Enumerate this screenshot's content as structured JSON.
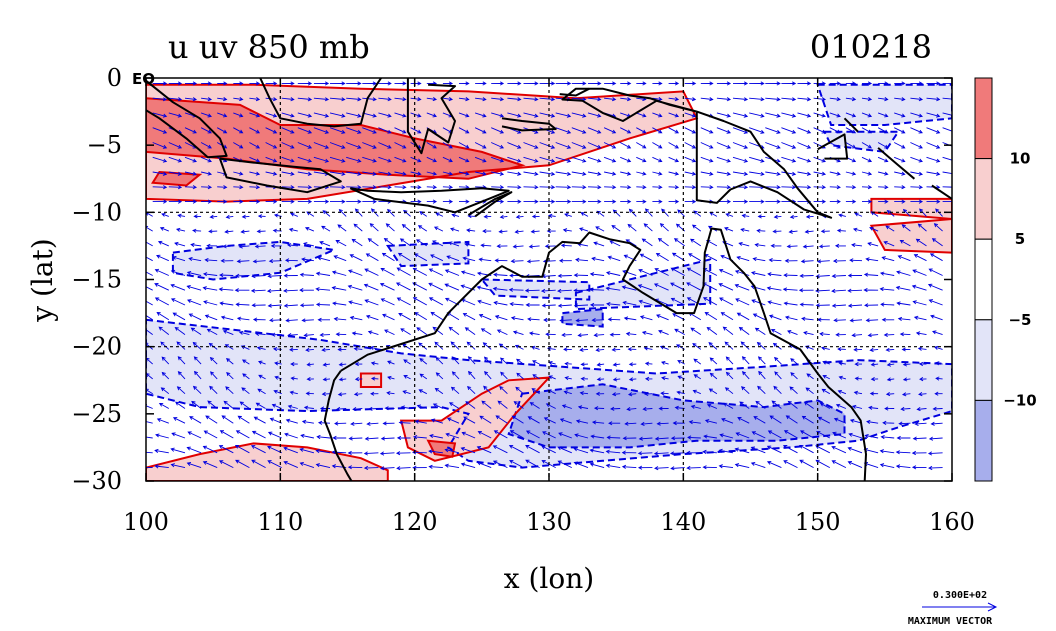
{
  "chart_data": {
    "type": "heatmap",
    "title_left": "u uv 850 mb",
    "title_right": "010218",
    "xlabel": "x (lon)",
    "ylabel": "y (lat)",
    "xlim": [
      100,
      160
    ],
    "ylim": [
      -30,
      0
    ],
    "x_ticks": [
      100,
      110,
      120,
      130,
      140,
      150,
      160
    ],
    "x_tick_labels": [
      "100",
      "110",
      "120",
      "130",
      "140",
      "150",
      "160"
    ],
    "y_ticks": [
      0,
      -5,
      -10,
      -15,
      -20,
      -25,
      -30
    ],
    "y_tick_labels": [
      "0",
      "−5",
      "−10",
      "−15",
      "−20",
      "−25",
      "−30"
    ],
    "eq_label": "EQ",
    "grid_lon": [
      110,
      120,
      130,
      140,
      150
    ],
    "grid_lat": [
      -10,
      -20
    ],
    "colorbar": {
      "labels": [
        "10",
        "5",
        "−5",
        "−10"
      ],
      "levels": [
        {
          "range": "> 10",
          "color": "#f07a7a"
        },
        {
          "range": "5 to 10",
          "color": "#f8cfcf"
        },
        {
          "range": "-5 to 5",
          "color": "#ffffff"
        },
        {
          "range": "-10 to -5",
          "color": "#e2e4f8"
        },
        {
          "range": "< -10",
          "color": "#a7aeec"
        }
      ]
    },
    "vector_legend": {
      "value": "0.300E+02",
      "label": "MAXIMUM VECTOR"
    },
    "colors": {
      "positive": "#e00000",
      "negative": "#0000e0",
      "coast": "#000000"
    },
    "regions_positive_5": [
      [
        [
          100,
          -0.5
        ],
        [
          108,
          -0.5
        ],
        [
          116,
          -0.8
        ],
        [
          124,
          -1.0
        ],
        [
          132,
          -1.5
        ],
        [
          140,
          -1.0
        ],
        [
          141,
          -3.0
        ],
        [
          136,
          -4.5
        ],
        [
          130,
          -6.5
        ],
        [
          124,
          -7.0
        ],
        [
          118,
          -8.0
        ],
        [
          112,
          -9.0
        ],
        [
          106,
          -9.2
        ],
        [
          100,
          -9.0
        ]
      ],
      [
        [
          154,
          -9.0
        ],
        [
          160,
          -9.0
        ],
        [
          160,
          -10.5
        ],
        [
          154,
          -10.0
        ]
      ],
      [
        [
          154,
          -11.0
        ],
        [
          160,
          -10.5
        ],
        [
          160,
          -13.0
        ],
        [
          155,
          -12.8
        ]
      ],
      [
        [
          116,
          -22.0
        ],
        [
          117.5,
          -22.0
        ],
        [
          117.5,
          -23.0
        ],
        [
          116,
          -23.0
        ]
      ],
      [
        [
          119,
          -25.5
        ],
        [
          122,
          -25.5
        ],
        [
          125,
          -23.5
        ],
        [
          127,
          -22.5
        ],
        [
          130,
          -22.3
        ],
        [
          127.5,
          -25.0
        ],
        [
          125.5,
          -27.5
        ],
        [
          121.5,
          -28.5
        ],
        [
          119.5,
          -27.5
        ]
      ],
      [
        [
          100,
          -29.0
        ],
        [
          104,
          -28.0
        ],
        [
          108,
          -27.2
        ],
        [
          112,
          -27.5
        ],
        [
          116,
          -28.3
        ],
        [
          118,
          -29.2
        ],
        [
          118,
          -30
        ],
        [
          100,
          -30
        ]
      ]
    ],
    "regions_positive_10": [
      [
        [
          100,
          -1.5
        ],
        [
          107,
          -2.0
        ],
        [
          110,
          -3.5
        ],
        [
          116,
          -3.5
        ],
        [
          120,
          -4.5
        ],
        [
          125,
          -5.5
        ],
        [
          128,
          -6.5
        ],
        [
          124,
          -7.5
        ],
        [
          118,
          -7.2
        ],
        [
          112,
          -6.8
        ],
        [
          106,
          -6.0
        ],
        [
          100,
          -5.5
        ]
      ],
      [
        [
          101,
          -7.0
        ],
        [
          104,
          -7.2
        ],
        [
          103,
          -8.0
        ],
        [
          100.5,
          -7.8
        ]
      ],
      [
        [
          121,
          -27.0
        ],
        [
          123,
          -27.2
        ],
        [
          122.8,
          -28.2
        ],
        [
          121.5,
          -28.0
        ]
      ]
    ],
    "regions_negative_5": [
      [
        [
          100,
          -18.0
        ],
        [
          107,
          -18.8
        ],
        [
          113,
          -19.5
        ],
        [
          119,
          -20.5
        ],
        [
          124,
          -21.0
        ],
        [
          131,
          -21.5
        ],
        [
          138,
          -22.0
        ],
        [
          146,
          -21.5
        ],
        [
          153,
          -21.0
        ],
        [
          160,
          -21.3
        ],
        [
          160,
          -24.8
        ],
        [
          156,
          -26.0
        ],
        [
          153,
          -27.0
        ],
        [
          148,
          -27.5
        ],
        [
          140,
          -28.0
        ],
        [
          134,
          -28.5
        ],
        [
          128,
          -29.0
        ],
        [
          124,
          -28.5
        ],
        [
          122.5,
          -27.5
        ],
        [
          124,
          -25.0
        ],
        [
          122,
          -24.5
        ],
        [
          112,
          -24.8
        ],
        [
          104,
          -24.5
        ],
        [
          100,
          -23.5
        ]
      ],
      [
        [
          102,
          -13.0
        ],
        [
          106,
          -12.5
        ],
        [
          110,
          -12.2
        ],
        [
          114,
          -12.8
        ],
        [
          110,
          -14.5
        ],
        [
          105,
          -15.0
        ],
        [
          102,
          -14.5
        ]
      ],
      [
        [
          118,
          -12.5
        ],
        [
          124,
          -12.2
        ],
        [
          124,
          -13.8
        ],
        [
          119,
          -14.0
        ]
      ],
      [
        [
          125,
          -15.0
        ],
        [
          133,
          -15.2
        ],
        [
          133,
          -16.5
        ],
        [
          126,
          -16.2
        ]
      ],
      [
        [
          132,
          -16.0
        ],
        [
          138,
          -14.5
        ],
        [
          142,
          -13.5
        ],
        [
          142,
          -16.8
        ],
        [
          137,
          -17.0
        ],
        [
          132,
          -17.2
        ]
      ],
      [
        [
          150,
          -0.5
        ],
        [
          160,
          -0.5
        ],
        [
          160,
          -3.0
        ],
        [
          155,
          -3.5
        ],
        [
          151,
          -3.5
        ]
      ],
      [
        [
          150.5,
          -4.0
        ],
        [
          156,
          -4.0
        ],
        [
          155,
          -5.5
        ],
        [
          151,
          -5.0
        ]
      ]
    ],
    "regions_negative_10": [
      [
        [
          128,
          -23.5
        ],
        [
          134,
          -22.8
        ],
        [
          140,
          -24.0
        ],
        [
          146,
          -24.5
        ],
        [
          150,
          -24.0
        ],
        [
          152,
          -25.0
        ],
        [
          152,
          -26.5
        ],
        [
          147,
          -27.0
        ],
        [
          141,
          -27.0
        ],
        [
          136,
          -27.5
        ],
        [
          130,
          -27.5
        ],
        [
          127,
          -26.5
        ]
      ],
      [
        [
          131,
          -17.5
        ],
        [
          134,
          -17.2
        ],
        [
          134,
          -18.5
        ],
        [
          131,
          -18.3
        ]
      ]
    ],
    "coastlines": [
      [
        [
          114.5,
          -21.8
        ],
        [
          114.0,
          -22.5
        ],
        [
          113.6,
          -24.0
        ],
        [
          113.3,
          -25.5
        ],
        [
          113.7,
          -26.5
        ],
        [
          114.2,
          -28.0
        ],
        [
          115.0,
          -29.5
        ],
        [
          115.3,
          -30
        ]
      ],
      [
        [
          114.5,
          -21.8
        ],
        [
          116.5,
          -20.6
        ],
        [
          119,
          -19.8
        ],
        [
          121.5,
          -19.0
        ],
        [
          122.5,
          -17.5
        ],
        [
          123.5,
          -16.5
        ],
        [
          125,
          -15.0
        ],
        [
          126.5,
          -14.0
        ],
        [
          128,
          -14.8
        ],
        [
          129.5,
          -14.8
        ],
        [
          130,
          -13.0
        ],
        [
          131,
          -12.2
        ],
        [
          132.3,
          -12.3
        ],
        [
          133,
          -11.5
        ],
        [
          134.5,
          -12.0
        ],
        [
          136,
          -12.3
        ],
        [
          136.8,
          -12.8
        ],
        [
          136,
          -14.0
        ],
        [
          135.5,
          -15.0
        ],
        [
          137,
          -16.0
        ],
        [
          139.5,
          -17.5
        ],
        [
          140.8,
          -17.5
        ],
        [
          141.5,
          -15.5
        ],
        [
          141.6,
          -13.0
        ],
        [
          142.1,
          -11.2
        ],
        [
          142.8,
          -11.3
        ],
        [
          143.5,
          -13.5
        ],
        [
          144.5,
          -14.5
        ],
        [
          145.3,
          -15.5
        ],
        [
          146,
          -17.5
        ],
        [
          146.5,
          -19.0
        ],
        [
          148.7,
          -20.2
        ],
        [
          150,
          -22.0
        ],
        [
          150.8,
          -23.0
        ],
        [
          152.5,
          -24.5
        ],
        [
          153.2,
          -25.5
        ],
        [
          153.6,
          -28.0
        ],
        [
          153.5,
          -30
        ]
      ],
      [
        [
          141,
          -2.5
        ],
        [
          143,
          -3.2
        ],
        [
          145,
          -4.0
        ],
        [
          146,
          -5.5
        ],
        [
          147.5,
          -6.8
        ],
        [
          148.5,
          -8.2
        ],
        [
          150,
          -10.0
        ],
        [
          151,
          -10.4
        ],
        [
          149,
          -9.8
        ],
        [
          147,
          -8.5
        ],
        [
          145,
          -7.7
        ],
        [
          143.5,
          -8.3
        ],
        [
          142.5,
          -9.3
        ],
        [
          141,
          -9.1
        ],
        [
          141,
          -2.5
        ]
      ],
      [
        [
          141,
          -2.5
        ],
        [
          138,
          -1.7
        ],
        [
          135.5,
          -3.2
        ],
        [
          134,
          -2.6
        ],
        [
          132.5,
          -1.7
        ],
        [
          131,
          -1.6
        ],
        [
          132,
          -0.8
        ],
        [
          134,
          -0.8
        ],
        [
          136,
          -1.3
        ],
        [
          137.5,
          -1.5
        ],
        [
          139,
          -2.0
        ],
        [
          141,
          -2.5
        ]
      ],
      [
        [
          100,
          -0.2
        ],
        [
          102,
          -1.8
        ],
        [
          104,
          -3.0
        ],
        [
          105.5,
          -4.5
        ],
        [
          106,
          -5.8
        ],
        [
          104.6,
          -5.9
        ],
        [
          103,
          -4.5
        ],
        [
          101,
          -3.0
        ],
        [
          100,
          -2.4
        ]
      ],
      [
        [
          105.5,
          -6.0
        ],
        [
          108,
          -6.3
        ],
        [
          111,
          -6.6
        ],
        [
          113,
          -6.8
        ],
        [
          114.5,
          -7.7
        ],
        [
          112,
          -8.5
        ],
        [
          109,
          -8.0
        ],
        [
          106,
          -7.4
        ],
        [
          105.5,
          -6.0
        ]
      ],
      [
        [
          108.5,
          0
        ],
        [
          109.2,
          -1.5
        ],
        [
          110,
          -3.0
        ],
        [
          112,
          -3.4
        ],
        [
          114,
          -3.6
        ],
        [
          116,
          -3.4
        ],
        [
          116.5,
          -1.5
        ],
        [
          117.5,
          0
        ]
      ],
      [
        [
          119.5,
          0
        ],
        [
          119.5,
          -2.0
        ],
        [
          119.5,
          -4.0
        ],
        [
          120.5,
          -5.6
        ],
        [
          121,
          -3.8
        ],
        [
          122.5,
          -4.8
        ],
        [
          123,
          -3.2
        ],
        [
          122,
          -1.5
        ],
        [
          123,
          -0.6
        ],
        [
          121,
          -0.5
        ]
      ],
      [
        [
          115.2,
          -8.2
        ],
        [
          116.5,
          -8.4
        ],
        [
          119,
          -8.5
        ],
        [
          122,
          -8.4
        ],
        [
          125,
          -8.2
        ],
        [
          127,
          -8.4
        ],
        [
          125.5,
          -9.0
        ],
        [
          123,
          -10.0
        ],
        [
          121,
          -9.5
        ],
        [
          117,
          -9.0
        ],
        [
          115.2,
          -8.2
        ]
      ],
      [
        [
          124,
          -10.2
        ],
        [
          126,
          -9.0
        ],
        [
          127.2,
          -8.5
        ],
        [
          126,
          -9.2
        ],
        [
          124.5,
          -10.3
        ]
      ],
      [
        [
          126.5,
          -3.0
        ],
        [
          128,
          -3.2
        ],
        [
          130,
          -3.4
        ],
        [
          130.5,
          -3.8
        ],
        [
          128,
          -3.9
        ],
        [
          126.5,
          -3.6
        ]
      ],
      [
        [
          130.8,
          -1.2
        ],
        [
          132,
          -1.3
        ],
        [
          133,
          -0.8
        ]
      ],
      [
        [
          150,
          -5.3
        ],
        [
          152,
          -4.2
        ],
        [
          152.2,
          -6.0
        ],
        [
          150.5,
          -6.0
        ]
      ],
      [
        [
          154.5,
          -5.2
        ],
        [
          156,
          -6.5
        ],
        [
          157.2,
          -7.5
        ]
      ],
      [
        [
          158.5,
          -8.0
        ],
        [
          160,
          -9.0
        ]
      ],
      [
        [
          152,
          -3.0
        ],
        [
          153,
          -4.0
        ]
      ]
    ]
  }
}
